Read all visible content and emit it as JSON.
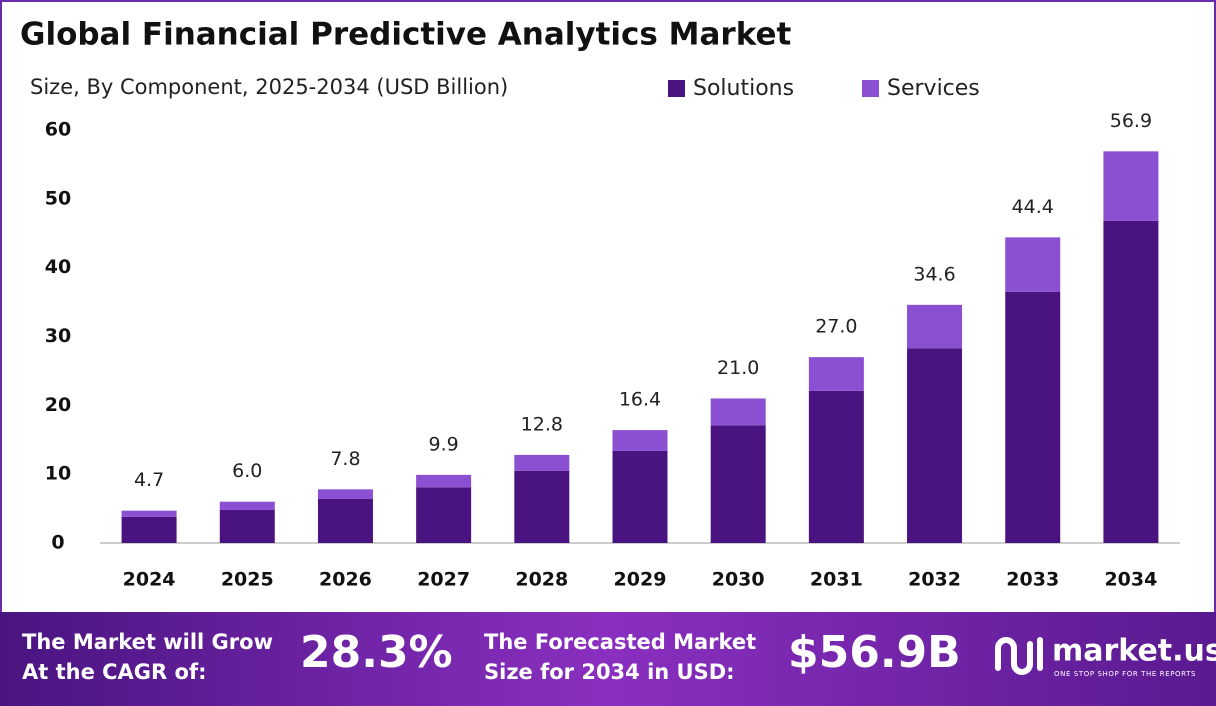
{
  "chart_data": {
    "type": "stacked_bar",
    "title": "Global Financial Predictive Analytics Market",
    "subtitle": "Size, By Component, 2025-2034 (USD Billion)",
    "categories": [
      "2024",
      "2025",
      "2026",
      "2027",
      "2028",
      "2029",
      "2030",
      "2031",
      "2032",
      "2033",
      "2034"
    ],
    "series": [
      {
        "name": "Solutions",
        "color": "#4a1480",
        "values": [
          3.8,
          4.8,
          6.4,
          8.1,
          10.5,
          13.4,
          17.1,
          22.1,
          28.3,
          36.5,
          46.8
        ]
      },
      {
        "name": "Services",
        "color": "#8b4fd1",
        "values": [
          0.9,
          1.2,
          1.4,
          1.8,
          2.3,
          3.0,
          3.9,
          4.9,
          6.3,
          7.9,
          10.1
        ]
      }
    ],
    "totals": [
      4.7,
      6,
      7.8,
      9.9,
      12.8,
      16.4,
      21,
      27,
      34.6,
      44.4,
      56.9
    ],
    "total_labels": [
      "4.7",
      "6.0",
      "7.8",
      "9.9",
      "12.8",
      "16.4",
      "21.0",
      "27.0",
      "34.6",
      "44.4",
      "56.9"
    ],
    "ylim": [
      0,
      60
    ],
    "yticks": [
      0,
      10,
      20,
      30,
      40,
      50,
      60
    ],
    "grid": false,
    "legend": "top-right"
  },
  "footer": {
    "cagr_text": [
      "The Market will Grow",
      "At the CAGR of:"
    ],
    "cagr_value": "28.3%",
    "forecast_text": [
      "The Forecasted Market",
      "Size for 2034 in USD:"
    ],
    "forecast_value": "$56.9B",
    "logo": "market.us",
    "tagline": "ONE STOP SHOP FOR THE REPORTS"
  }
}
